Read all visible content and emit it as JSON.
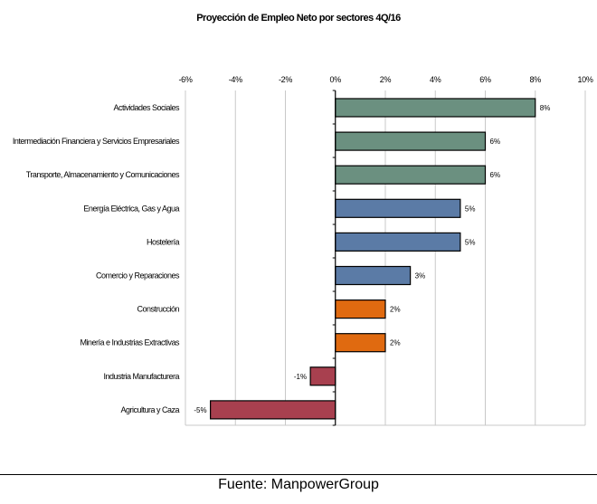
{
  "chart_data": {
    "type": "bar",
    "orientation": "horizontal",
    "title": "Proyección de Empleo Neto por sectores  4Q/16",
    "categories": [
      "Actividades Sociales",
      "Intermediación Financiera y Servicios Empresariales",
      "Transporte, Almacenamiento y Comunicaciones",
      "Energía Eléctrica, Gas y Agua",
      "Hostelería",
      "Comercio y Reparaciones",
      "Construcción",
      "Minería e Industrias Extractivas",
      "Industria Manufacturera",
      "Agricultura y Caza"
    ],
    "values": [
      8,
      6,
      6,
      5,
      5,
      3,
      2,
      2,
      -1,
      -5
    ],
    "data_labels": [
      "8%",
      "6%",
      "6%",
      "5%",
      "5%",
      "3%",
      "2%",
      "2%",
      "-1%",
      "-5%"
    ],
    "colors": [
      "#6b9080",
      "#6b9080",
      "#6b9080",
      "#5b7ba6",
      "#5b7ba6",
      "#5b7ba6",
      "#e06a10",
      "#e06a10",
      "#a8404f",
      "#a8404f"
    ],
    "xlim": [
      -6,
      10
    ],
    "xticks": [
      -6,
      -4,
      -2,
      0,
      2,
      4,
      6,
      8,
      10
    ],
    "xtick_labels": [
      "-6%",
      "-4%",
      "-2%",
      "0%",
      "2%",
      "4%",
      "6%",
      "8%",
      "10%"
    ],
    "xaxis_position": "top",
    "grid": true,
    "xlabel": "",
    "ylabel": ""
  },
  "source": "Fuente: ManpowerGroup"
}
